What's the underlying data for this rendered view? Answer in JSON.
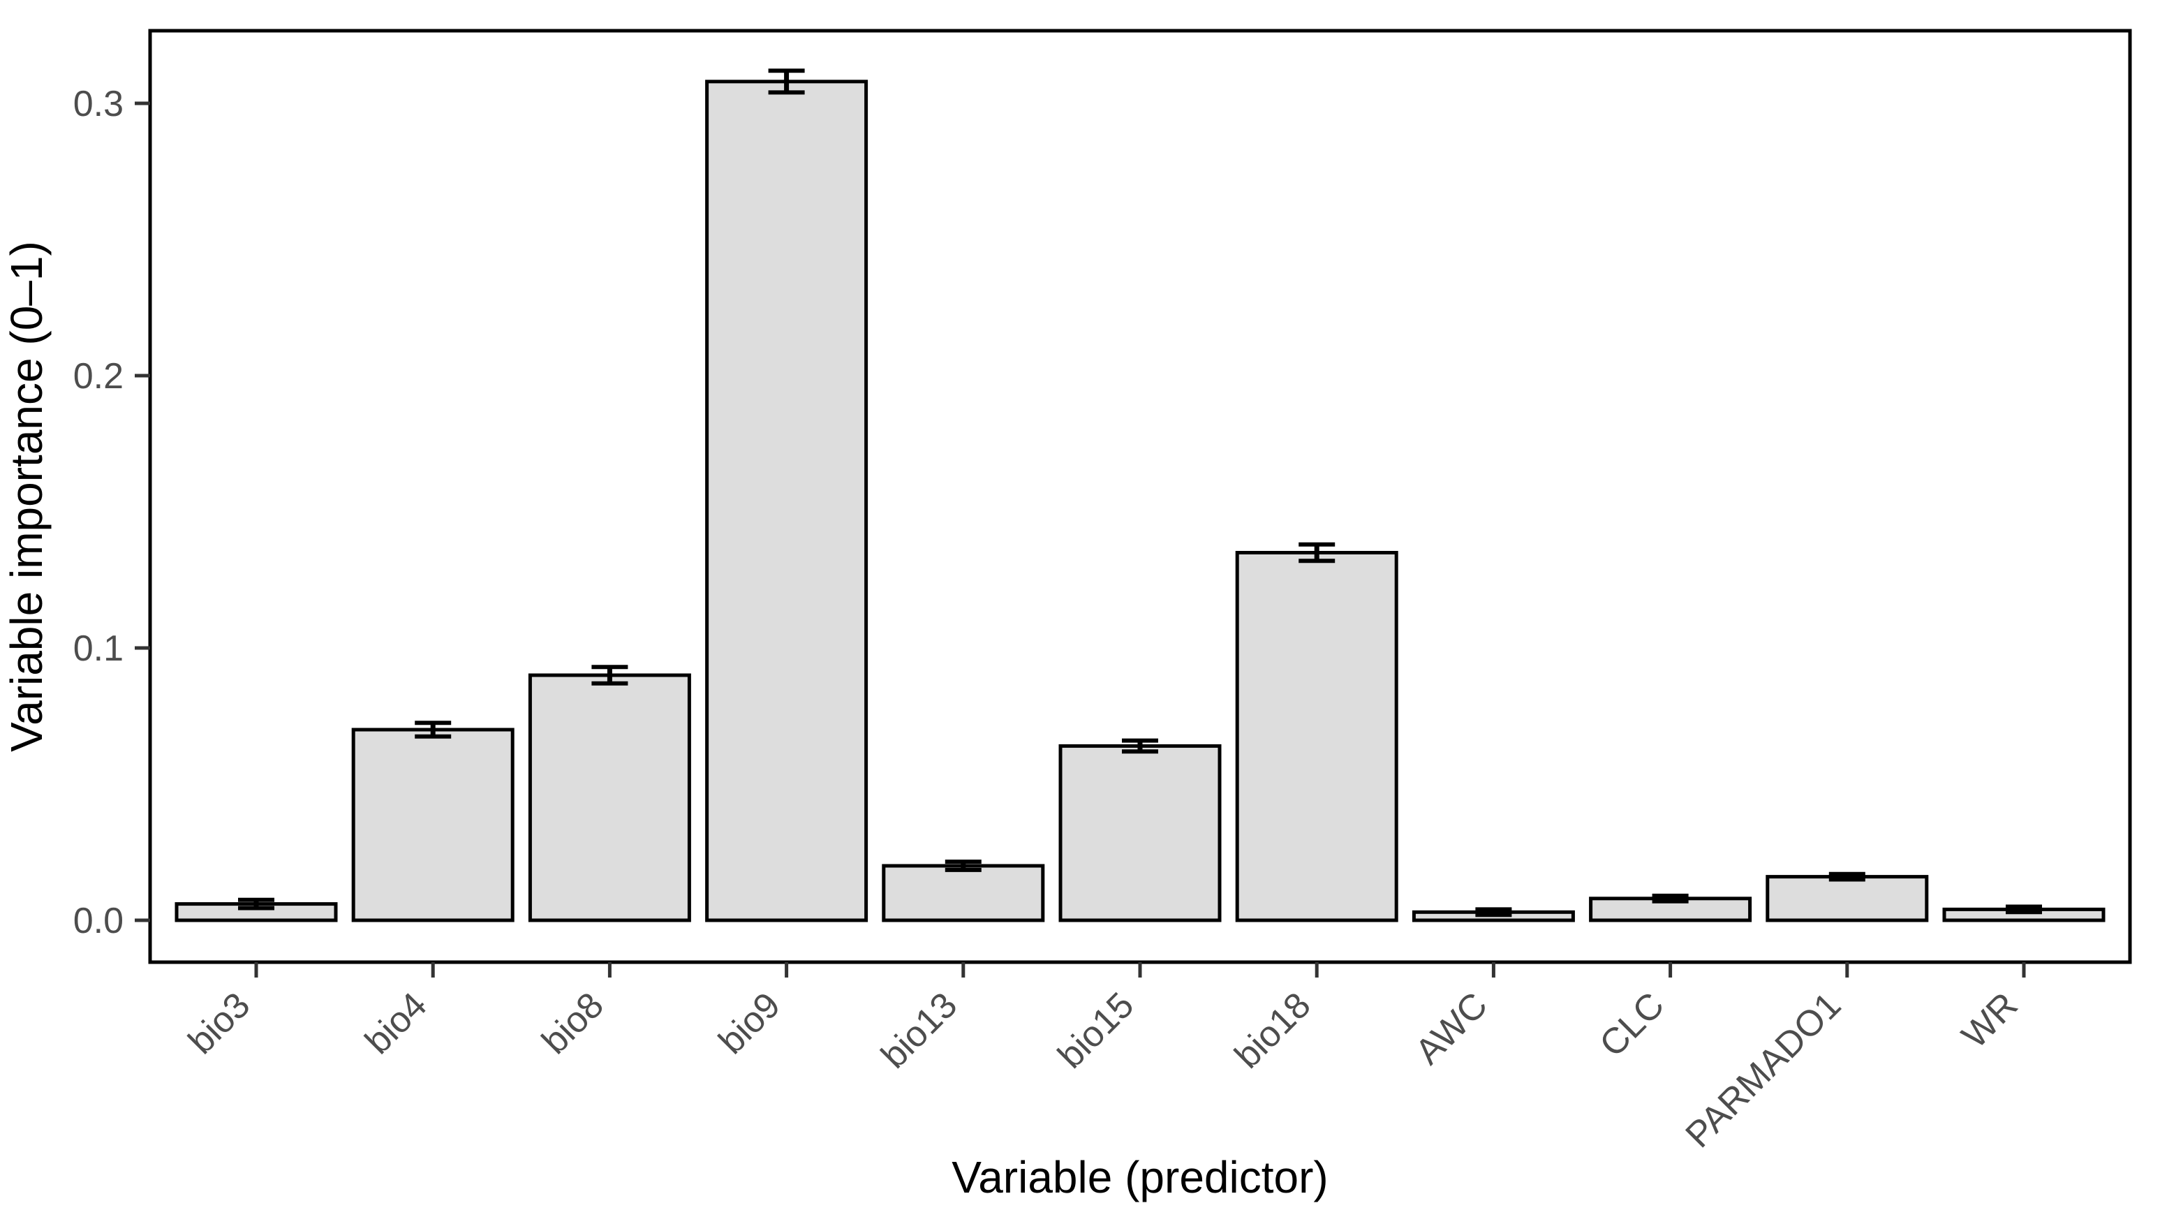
{
  "figure": {
    "background_color": "#ffffff",
    "panel_border_color": "#000000",
    "axis_text_color": "#4d4d4d",
    "axis_title_color": "#000000"
  },
  "chart_data": {
    "type": "bar",
    "title": "",
    "xlabel": "Variable (predictor)",
    "ylabel": "Variable importance (0–1)",
    "categories": [
      "bio3",
      "bio4",
      "bio8",
      "bio9",
      "bio13",
      "bio15",
      "bio18",
      "AWC",
      "CLC",
      "PARMADO1",
      "WR"
    ],
    "values": [
      0.006,
      0.07,
      0.09,
      0.308,
      0.02,
      0.064,
      0.135,
      0.003,
      0.008,
      0.016,
      0.004
    ],
    "error_bars": [
      0.0015,
      0.0025,
      0.003,
      0.004,
      0.0015,
      0.002,
      0.003,
      0.001,
      0.001,
      0.001,
      0.001
    ],
    "y_tick_values": [
      0.0,
      0.1,
      0.2,
      0.3
    ],
    "ylim": [
      0,
      0.315
    ],
    "grid": false,
    "legend": false,
    "x_tick_label_angle_deg": 45,
    "bar_fill_hex": "#dddddd",
    "bar_stroke_hex": "#000000",
    "error_bar_color_hex": "#000000"
  }
}
